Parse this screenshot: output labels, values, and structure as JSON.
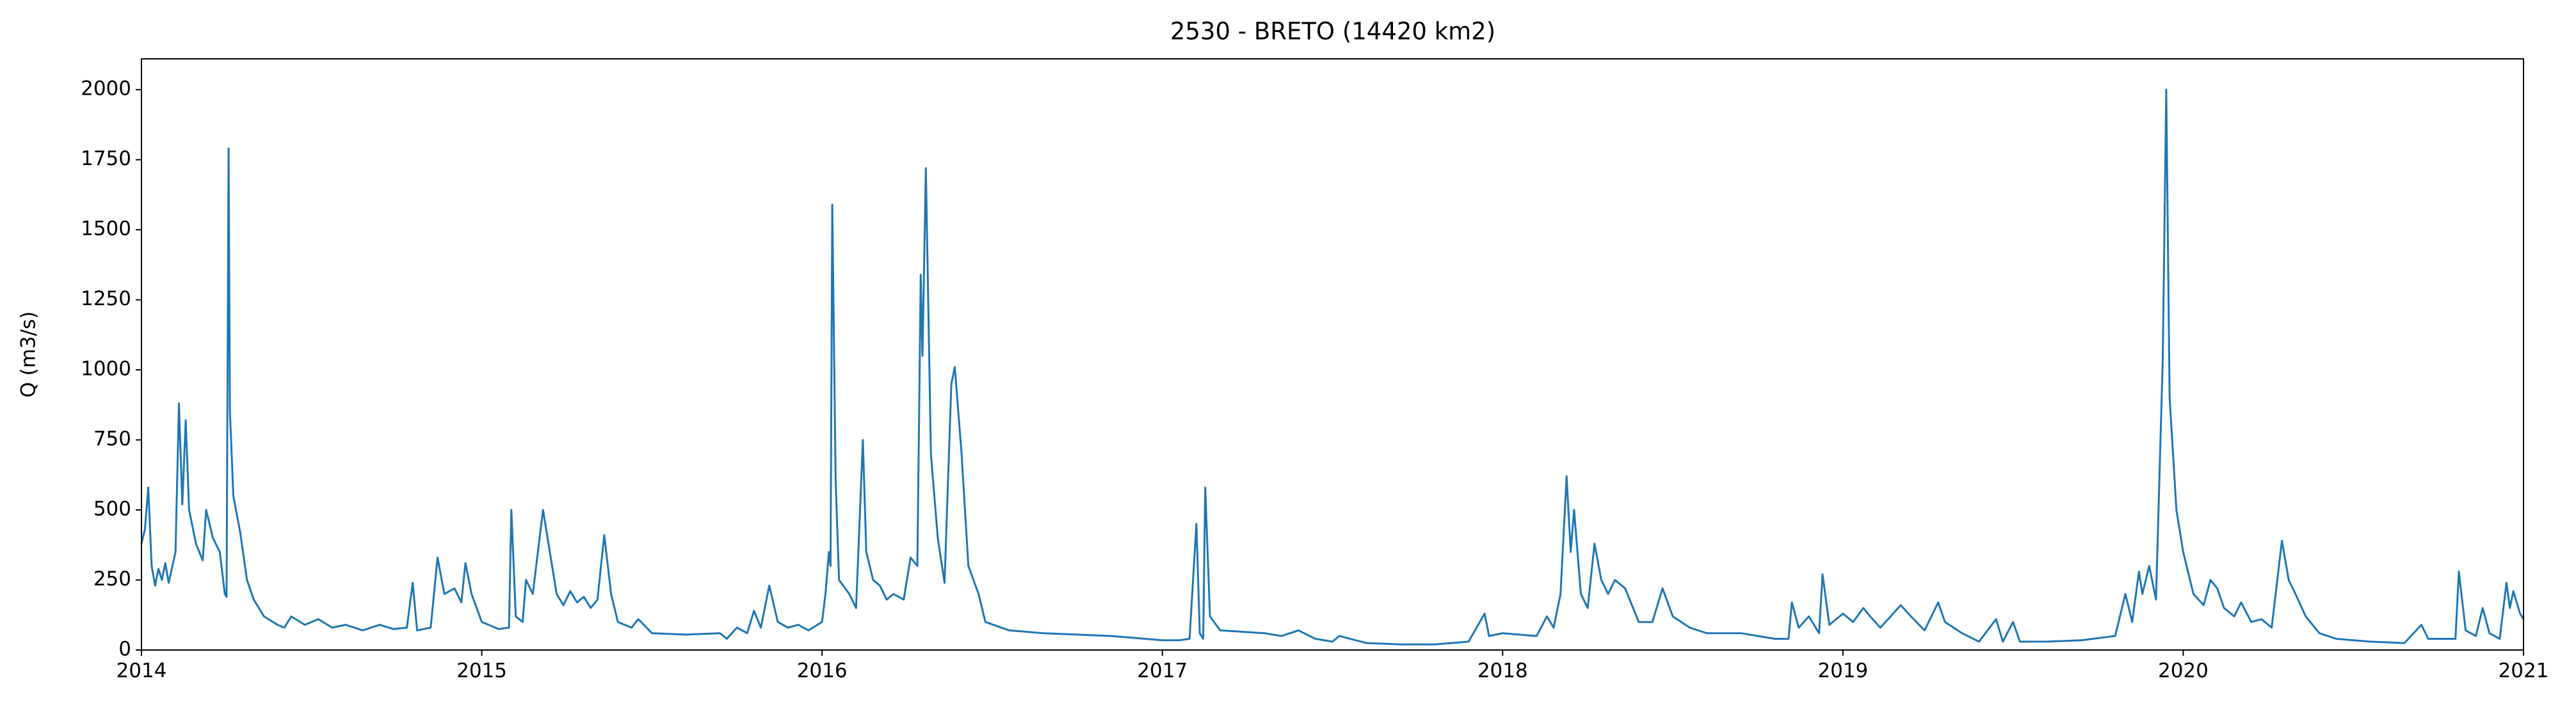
{
  "chart_data": {
    "type": "line",
    "title": "2530 - BRETO (14420 km2)",
    "y_label": "Q (m3/s)",
    "color": "#1f77b4",
    "x": [
      2014.0,
      2014.01,
      2014.02,
      2014.03,
      2014.04,
      2014.05,
      2014.06,
      2014.07,
      2014.08,
      2014.1,
      2014.11,
      2014.12,
      2014.13,
      2014.14,
      2014.16,
      2014.18,
      2014.19,
      2014.21,
      2014.23,
      2014.24,
      2014.245,
      2014.25,
      2014.256,
      2014.26,
      2014.27,
      2014.29,
      2014.31,
      2014.33,
      2014.36,
      2014.4,
      2014.42,
      2014.44,
      2014.48,
      2014.52,
      2014.56,
      2014.6,
      2014.65,
      2014.7,
      2014.74,
      2014.78,
      2014.797,
      2014.81,
      2014.85,
      2014.87,
      2014.89,
      2014.92,
      2014.94,
      2014.952,
      2014.97,
      2015.0,
      2015.05,
      2015.08,
      2015.087,
      2015.1,
      2015.12,
      2015.13,
      2015.15,
      2015.17,
      2015.18,
      2015.2,
      2015.22,
      2015.24,
      2015.26,
      2015.28,
      2015.3,
      2015.32,
      2015.34,
      2015.36,
      2015.38,
      2015.4,
      2015.44,
      2015.46,
      2015.5,
      2015.6,
      2015.7,
      2015.72,
      2015.75,
      2015.78,
      2015.8,
      2015.82,
      2015.845,
      2015.87,
      2015.9,
      2015.93,
      2015.96,
      2016.0,
      2016.01,
      2016.02,
      2016.025,
      2016.03,
      2016.04,
      2016.05,
      2016.08,
      2016.1,
      2016.12,
      2016.13,
      2016.15,
      2016.17,
      2016.19,
      2016.21,
      2016.24,
      2016.26,
      2016.28,
      2016.29,
      2016.295,
      2016.305,
      2016.32,
      2016.34,
      2016.36,
      2016.38,
      2016.39,
      2016.41,
      2016.43,
      2016.46,
      2016.48,
      2016.55,
      2016.65,
      2016.75,
      2016.85,
      2016.95,
      2017.0,
      2017.05,
      2017.08,
      2017.1,
      2017.11,
      2017.12,
      2017.126,
      2017.14,
      2017.17,
      2017.3,
      2017.35,
      2017.4,
      2017.45,
      2017.5,
      2017.52,
      2017.6,
      2017.7,
      2017.8,
      2017.9,
      2017.947,
      2017.96,
      2018.0,
      2018.1,
      2018.13,
      2018.15,
      2018.17,
      2018.188,
      2018.2,
      2018.21,
      2018.23,
      2018.25,
      2018.27,
      2018.29,
      2018.31,
      2018.33,
      2018.36,
      2018.4,
      2018.44,
      2018.47,
      2018.5,
      2018.55,
      2018.6,
      2018.7,
      2018.8,
      2018.84,
      2018.85,
      2018.87,
      2018.9,
      2018.93,
      2018.94,
      2018.96,
      2019.0,
      2019.03,
      2019.06,
      2019.08,
      2019.11,
      2019.14,
      2019.17,
      2019.2,
      2019.24,
      2019.28,
      2019.3,
      2019.35,
      2019.4,
      2019.45,
      2019.47,
      2019.5,
      2019.52,
      2019.6,
      2019.7,
      2019.8,
      2019.83,
      2019.85,
      2019.87,
      2019.88,
      2019.9,
      2019.92,
      2019.94,
      2019.95,
      2019.96,
      2019.98,
      2020.0,
      2020.03,
      2020.06,
      2020.08,
      2020.1,
      2020.12,
      2020.15,
      2020.17,
      2020.2,
      2020.23,
      2020.26,
      2020.29,
      2020.31,
      2020.33,
      2020.36,
      2020.4,
      2020.45,
      2020.55,
      2020.65,
      2020.7,
      2020.72,
      2020.8,
      2020.81,
      2020.83,
      2020.86,
      2020.88,
      2020.9,
      2020.93,
      2020.95,
      2020.96,
      2020.97,
      2020.99,
      2021.0
    ],
    "values": [
      380,
      430,
      580,
      300,
      230,
      290,
      250,
      310,
      240,
      350,
      880,
      520,
      820,
      500,
      380,
      320,
      500,
      400,
      350,
      250,
      200,
      190,
      1790,
      850,
      550,
      420,
      250,
      180,
      120,
      90,
      80,
      120,
      90,
      110,
      80,
      90,
      70,
      90,
      75,
      80,
      240,
      70,
      80,
      330,
      200,
      220,
      170,
      310,
      200,
      100,
      75,
      80,
      500,
      120,
      100,
      250,
      200,
      400,
      500,
      350,
      200,
      160,
      210,
      170,
      190,
      150,
      180,
      410,
      200,
      100,
      80,
      110,
      60,
      55,
      60,
      40,
      80,
      60,
      140,
      80,
      230,
      100,
      80,
      90,
      70,
      100,
      200,
      350,
      300,
      1590,
      600,
      250,
      200,
      150,
      750,
      350,
      250,
      230,
      180,
      200,
      180,
      330,
      300,
      1340,
      1050,
      1720,
      700,
      400,
      240,
      950,
      1010,
      700,
      300,
      200,
      100,
      70,
      60,
      55,
      50,
      40,
      35,
      35,
      40,
      450,
      60,
      40,
      580,
      120,
      70,
      60,
      50,
      70,
      40,
      30,
      50,
      25,
      20,
      20,
      30,
      130,
      50,
      60,
      50,
      120,
      80,
      200,
      620,
      350,
      500,
      200,
      150,
      380,
      250,
      200,
      250,
      220,
      100,
      100,
      220,
      120,
      80,
      60,
      60,
      40,
      40,
      170,
      80,
      120,
      60,
      270,
      90,
      130,
      100,
      150,
      120,
      80,
      120,
      160,
      120,
      70,
      170,
      100,
      60,
      30,
      110,
      30,
      100,
      30,
      30,
      35,
      50,
      200,
      100,
      280,
      200,
      300,
      180,
      1040,
      2000,
      900,
      500,
      350,
      200,
      160,
      250,
      220,
      150,
      120,
      170,
      100,
      110,
      80,
      390,
      250,
      200,
      120,
      60,
      40,
      30,
      25,
      90,
      40,
      40,
      280,
      70,
      50,
      150,
      60,
      40,
      240,
      150,
      210,
      130,
      110
    ],
    "xlim": [
      2014,
      2021
    ],
    "xticks": [
      2014,
      2015,
      2016,
      2017,
      2018,
      2019,
      2020,
      2021
    ],
    "ylim": [
      0,
      2110
    ],
    "yticks": [
      0,
      250,
      500,
      750,
      1000,
      1250,
      1500,
      1750,
      2000
    ]
  }
}
